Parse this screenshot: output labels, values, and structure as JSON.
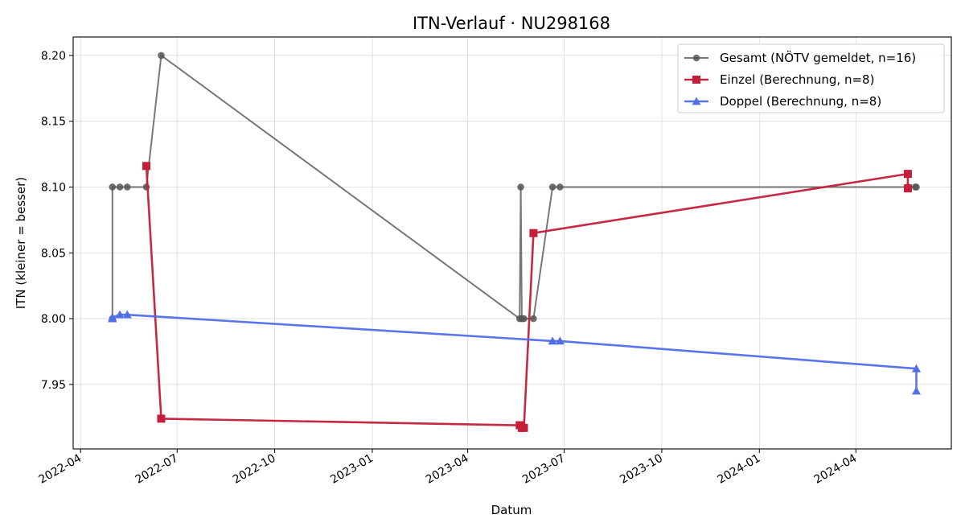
{
  "chart_data": {
    "type": "line",
    "title": "ITN-Verlauf · NU298168",
    "xlabel": "Datum",
    "ylabel": "ITN  (kleiner = besser)",
    "x_type": "date",
    "xlim": [
      "2022-03-25",
      "2024-06-30"
    ],
    "ylim": [
      7.901,
      8.214
    ],
    "x_ticks": [
      "2022-04-01",
      "2022-07-01",
      "2022-10-01",
      "2023-01-01",
      "2023-04-01",
      "2023-07-01",
      "2023-10-01",
      "2024-01-01",
      "2024-04-01"
    ],
    "x_tick_labels": [
      "2022-04",
      "2022-07",
      "2022-10",
      "2023-01",
      "2023-04",
      "2023-07",
      "2023-10",
      "2024-01",
      "2024-04"
    ],
    "y_ticks": [
      7.95,
      8.0,
      8.05,
      8.1,
      8.15,
      8.2
    ],
    "y_tick_labels": [
      "7.95",
      "8.00",
      "8.05",
      "8.10",
      "8.15",
      "8.20"
    ],
    "grid": true,
    "legend_position": "top-right",
    "series": [
      {
        "name": "Gesamt (NÖTV gemeldet, n=16)",
        "color": "#555555",
        "marker": "circle",
        "points": [
          {
            "x": "2022-05-01",
            "y": 8.0
          },
          {
            "x": "2022-05-01",
            "y": 8.1
          },
          {
            "x": "2022-05-08",
            "y": 8.1
          },
          {
            "x": "2022-05-15",
            "y": 8.1
          },
          {
            "x": "2022-06-02",
            "y": 8.1
          },
          {
            "x": "2022-06-16",
            "y": 8.2
          },
          {
            "x": "2023-05-20",
            "y": 8.0
          },
          {
            "x": "2023-05-21",
            "y": 8.1
          },
          {
            "x": "2023-05-22",
            "y": 8.0
          },
          {
            "x": "2023-05-24",
            "y": 8.0
          },
          {
            "x": "2023-06-02",
            "y": 8.0
          },
          {
            "x": "2023-06-20",
            "y": 8.1
          },
          {
            "x": "2023-06-27",
            "y": 8.1
          },
          {
            "x": "2024-05-20",
            "y": 8.1
          },
          {
            "x": "2024-05-27",
            "y": 8.1
          },
          {
            "x": "2024-05-28",
            "y": 8.1
          }
        ]
      },
      {
        "name": "Einzel (Berechnung, n=8)",
        "color": "#c41e3a",
        "marker": "square",
        "points": [
          {
            "x": "2022-06-02",
            "y": 8.116
          },
          {
            "x": "2022-06-16",
            "y": 7.924
          },
          {
            "x": "2023-05-20",
            "y": 7.919
          },
          {
            "x": "2023-05-22",
            "y": 7.917
          },
          {
            "x": "2023-05-24",
            "y": 7.917
          },
          {
            "x": "2023-06-02",
            "y": 8.065
          },
          {
            "x": "2024-05-20",
            "y": 8.11
          },
          {
            "x": "2024-05-20",
            "y": 8.099
          }
        ]
      },
      {
        "name": "Doppel (Berechnung, n=8)",
        "color": "#4f6ee8",
        "marker": "triangle",
        "points": [
          {
            "x": "2022-05-01",
            "y": 8.0
          },
          {
            "x": "2022-05-01",
            "y": 8.001
          },
          {
            "x": "2022-05-08",
            "y": 8.003
          },
          {
            "x": "2022-05-15",
            "y": 8.003
          },
          {
            "x": "2023-06-20",
            "y": 7.983
          },
          {
            "x": "2023-06-27",
            "y": 7.983
          },
          {
            "x": "2024-05-28",
            "y": 7.962
          },
          {
            "x": "2024-05-28",
            "y": 7.945
          }
        ]
      }
    ]
  }
}
